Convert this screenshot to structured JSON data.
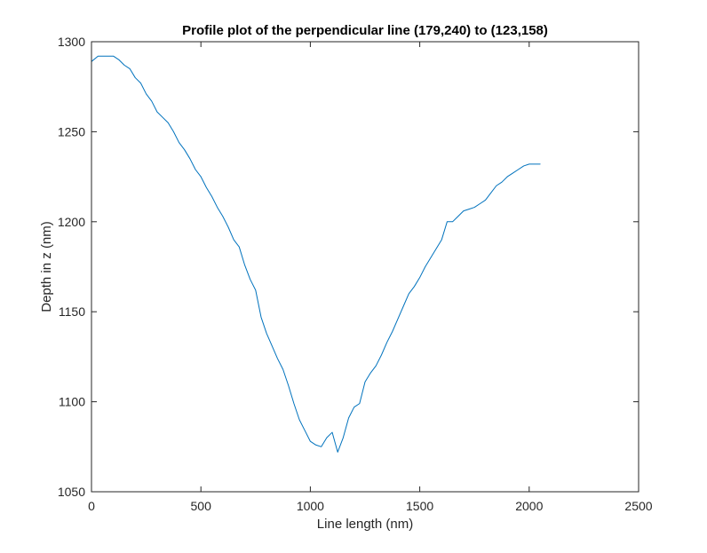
{
  "chart_data": {
    "type": "line",
    "title": "Profile plot of the perpendicular line (179,240) to (123,158)",
    "xlabel": "Line length (nm)",
    "ylabel": "Depth in z (nm)",
    "xlim": [
      0,
      2500
    ],
    "ylim": [
      1050,
      1300
    ],
    "xticks": [
      0,
      500,
      1000,
      1500,
      2000,
      2500
    ],
    "yticks": [
      1050,
      1100,
      1150,
      1200,
      1250,
      1300
    ],
    "xtick_labels": [
      "0",
      "500",
      "1000",
      "1500",
      "2000",
      "2500"
    ],
    "ytick_labels": [
      "1050",
      "1100",
      "1150",
      "1200",
      "1250",
      "1300"
    ],
    "grid": false,
    "box": true,
    "series": [
      {
        "color": "#0072bd",
        "x": [
          0,
          30,
          50,
          75,
          100,
          125,
          150,
          175,
          200,
          225,
          250,
          275,
          300,
          325,
          350,
          375,
          400,
          425,
          450,
          475,
          500,
          525,
          550,
          575,
          600,
          625,
          650,
          675,
          700,
          725,
          750,
          775,
          800,
          825,
          850,
          875,
          900,
          925,
          950,
          975,
          1000,
          1025,
          1050,
          1075,
          1100,
          1125,
          1150,
          1175,
          1200,
          1225,
          1250,
          1275,
          1300,
          1325,
          1350,
          1375,
          1400,
          1425,
          1450,
          1475,
          1500,
          1525,
          1550,
          1575,
          1600,
          1625,
          1650,
          1675,
          1700,
          1725,
          1750,
          1775,
          1800,
          1825,
          1850,
          1875,
          1900,
          1925,
          1950,
          1975,
          2000,
          2025,
          2050
        ],
        "y": [
          1289,
          1292,
          1292,
          1292,
          1292,
          1290,
          1287,
          1285,
          1280,
          1277,
          1271,
          1267,
          1261,
          1258,
          1255,
          1250,
          1244,
          1240,
          1235,
          1229,
          1225,
          1219,
          1214,
          1208,
          1203,
          1197,
          1190,
          1186,
          1176,
          1168,
          1162,
          1147,
          1138,
          1131,
          1124,
          1118,
          1109,
          1099,
          1090,
          1084,
          1078,
          1076,
          1075,
          1080,
          1083,
          1072,
          1080,
          1091,
          1097,
          1099,
          1111,
          1116,
          1120,
          1126,
          1133,
          1139,
          1146,
          1153,
          1160,
          1164,
          1169,
          1175,
          1180,
          1185,
          1190,
          1200,
          1200,
          1203,
          1206,
          1207,
          1208,
          1210,
          1212,
          1216,
          1220,
          1222,
          1225,
          1227,
          1229,
          1231,
          1232,
          1232,
          1232
        ]
      }
    ]
  }
}
